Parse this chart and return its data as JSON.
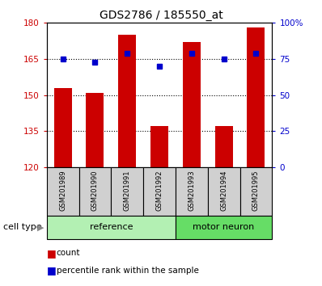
{
  "title": "GDS2786 / 185550_at",
  "samples": [
    "GSM201989",
    "GSM201990",
    "GSM201991",
    "GSM201992",
    "GSM201993",
    "GSM201994",
    "GSM201995"
  ],
  "red_values": [
    153,
    151,
    175,
    137,
    172,
    137,
    178
  ],
  "blue_values": [
    75,
    73,
    79,
    70,
    79,
    75,
    79
  ],
  "ylim_left": [
    120,
    180
  ],
  "ylim_right": [
    0,
    100
  ],
  "yticks_left": [
    120,
    135,
    150,
    165,
    180
  ],
  "yticks_right": [
    0,
    25,
    50,
    75,
    100
  ],
  "ytick_labels_right": [
    "0",
    "25",
    "50",
    "75",
    "100%"
  ],
  "group_reference_indices": [
    0,
    1,
    2,
    3
  ],
  "group_motor_indices": [
    4,
    5,
    6
  ],
  "group_reference_label": "reference",
  "group_motor_label": "motor neuron",
  "group_reference_color": "#b3f0b3",
  "group_motor_color": "#66dd66",
  "bar_color": "#CC0000",
  "dot_color": "#0000CC",
  "bar_width": 0.55,
  "sample_box_color": "#d0d0d0",
  "legend_count_label": "count",
  "legend_pct_label": "percentile rank within the sample",
  "cell_type_label": "cell type"
}
